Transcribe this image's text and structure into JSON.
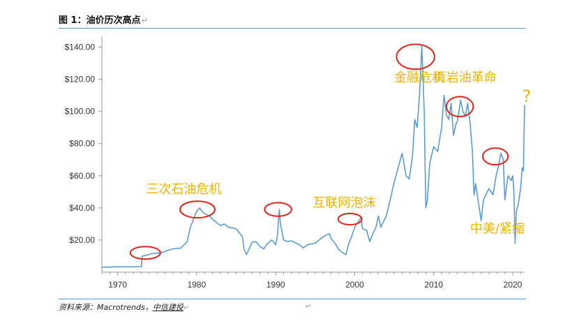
{
  "figure": {
    "title": "图 1：油价历次高点",
    "source_label": "资料来源：Macrotrends，",
    "source_link": "中信建投",
    "para_mark": "↵"
  },
  "chart_data": {
    "type": "line",
    "title": "",
    "xlabel": "",
    "ylabel": "",
    "xlim": [
      1968,
      2021.5
    ],
    "ylim": [
      0,
      145
    ],
    "x_ticks": [
      1970,
      1980,
      1990,
      2000,
      2010,
      2020
    ],
    "y_ticks": [
      20,
      40,
      60,
      80,
      100,
      120,
      140
    ],
    "y_tick_labels": [
      "$20.00",
      "$40.00",
      "$60.00",
      "$80.00",
      "$100.00",
      "$120.00",
      "$140.00"
    ],
    "grid": false,
    "legend": "none",
    "colors": {
      "line": "#5b9bd5",
      "annotation": "#f0b400",
      "circle": "#e0251b",
      "axis": "#999999"
    },
    "series": [
      {
        "x": [
          1968,
          1970,
          1973.0,
          1973.1,
          1974.0,
          1974.2,
          1975.5,
          1976,
          1977,
          1978,
          1978.8,
          1979.2,
          1979.6,
          1980.0,
          1980.4,
          1980.8,
          1981.2,
          1981.6,
          1982.0,
          1982.5,
          1983,
          1983.5,
          1984,
          1984.5,
          1985,
          1985.8,
          1986.0,
          1986.3,
          1986.5,
          1987,
          1987.5,
          1988,
          1988.5,
          1989,
          1989.5,
          1990.0,
          1990.2,
          1990.45,
          1990.6,
          1990.8,
          1991,
          1991.5,
          1992,
          1993,
          1993.5,
          1994,
          1995,
          1996,
          1996.8,
          1997,
          1997.5,
          1998,
          1998.5,
          1998.9,
          1999.2,
          1999.6,
          2000,
          2000.4,
          2000.8,
          2001,
          2001.5,
          2001.9,
          2002.3,
          2002.7,
          2003.0,
          2003.3,
          2004,
          2004.5,
          2005,
          2005.5,
          2006,
          2006.5,
          2006.9,
          2007.3,
          2007.6,
          2007.9,
          2008.2,
          2008.5,
          2008.8,
          2009.0,
          2009.2,
          2009.5,
          2010,
          2010.5,
          2011.0,
          2011.3,
          2011.6,
          2011.9,
          2012.2,
          2012.5,
          2012.8,
          2013,
          2013.4,
          2013.7,
          2014.0,
          2014.3,
          2014.6,
          2014.9,
          2015.1,
          2015.3,
          2015.6,
          2016.0,
          2016.3,
          2016.7,
          2017.0,
          2017.5,
          2017.9,
          2018.2,
          2018.5,
          2018.8,
          2019.0,
          2019.4,
          2019.8,
          2020.0,
          2020.15,
          2020.3,
          2020.45,
          2020.7,
          2021.0,
          2021.2,
          2021.35,
          2021.5
        ],
        "y": [
          3.1,
          3.3,
          3.4,
          10.0,
          11.0,
          11.5,
          12.0,
          13.0,
          14.5,
          15.0,
          19.0,
          28.0,
          33.0,
          38.0,
          40.0,
          37.0,
          36.0,
          35.0,
          33.0,
          31.0,
          29.0,
          30.0,
          28.0,
          27.5,
          27.0,
          22.0,
          14.0,
          11.0,
          13.0,
          18.5,
          19.0,
          16.0,
          14.5,
          18.0,
          20.0,
          17.0,
          22.0,
          39.0,
          30.0,
          25.0,
          20.0,
          19.0,
          19.5,
          17.0,
          15.0,
          17.0,
          18.0,
          22.0,
          24.0,
          21.0,
          18.0,
          14.0,
          12.0,
          11.0,
          17.0,
          22.0,
          28.0,
          31.0,
          34.0,
          27.0,
          26.0,
          19.0,
          24.0,
          28.0,
          35.0,
          28.0,
          35.0,
          45.0,
          56.0,
          65.0,
          74.0,
          60.0,
          58.0,
          72.0,
          95.0,
          90.0,
          110.0,
          141.0,
          100.0,
          40.0,
          45.0,
          68.0,
          78.0,
          75.0,
          90.0,
          110.0,
          98.0,
          95.0,
          105.0,
          85.0,
          92.0,
          94.0,
          107.0,
          100.0,
          97.0,
          105.0,
          93.0,
          75.0,
          48.0,
          55.0,
          45.0,
          32.0,
          45.0,
          49.0,
          52.0,
          48.0,
          60.0,
          66.0,
          74.0,
          70.0,
          45.0,
          60.0,
          57.0,
          60.0,
          50.0,
          18.0,
          38.0,
          42.0,
          52.0,
          65.0,
          63.0,
          104.0
        ]
      }
    ],
    "annotations": [
      {
        "text": "三次石油危机",
        "x": 1973.6,
        "y": 49.0,
        "size": 18
      },
      {
        "text": "互联网泡沫",
        "x": 1994.7,
        "y": 40.5,
        "size": 18
      },
      {
        "text": "金融危机",
        "x": 2005.0,
        "y": 118.5,
        "size": 18
      },
      {
        "text": "页岩油革命",
        "x": 2010.0,
        "y": 118.5,
        "size": 18
      },
      {
        "text": "中美/紧缩",
        "x": 2014.6,
        "y": 24.5,
        "size": 18
      },
      {
        "text": "?",
        "x": 2021.2,
        "y": 106.0,
        "size": 24
      }
    ],
    "highlight_circles": [
      {
        "x": 1973.5,
        "y": 12.0,
        "rx": 1.9,
        "ry": 3.9
      },
      {
        "x": 1980.1,
        "y": 39.0,
        "rx": 2.2,
        "ry": 5.2
      },
      {
        "x": 1990.3,
        "y": 39.0,
        "rx": 1.7,
        "ry": 4.2
      },
      {
        "x": 1999.4,
        "y": 33.0,
        "rx": 1.5,
        "ry": 3.5
      },
      {
        "x": 2007.7,
        "y": 134.0,
        "rx": 2.4,
        "ry": 7.8
      },
      {
        "x": 2013.3,
        "y": 103.0,
        "rx": 1.7,
        "ry": 6.2
      },
      {
        "x": 2017.8,
        "y": 72.0,
        "rx": 1.6,
        "ry": 5.2
      }
    ]
  }
}
